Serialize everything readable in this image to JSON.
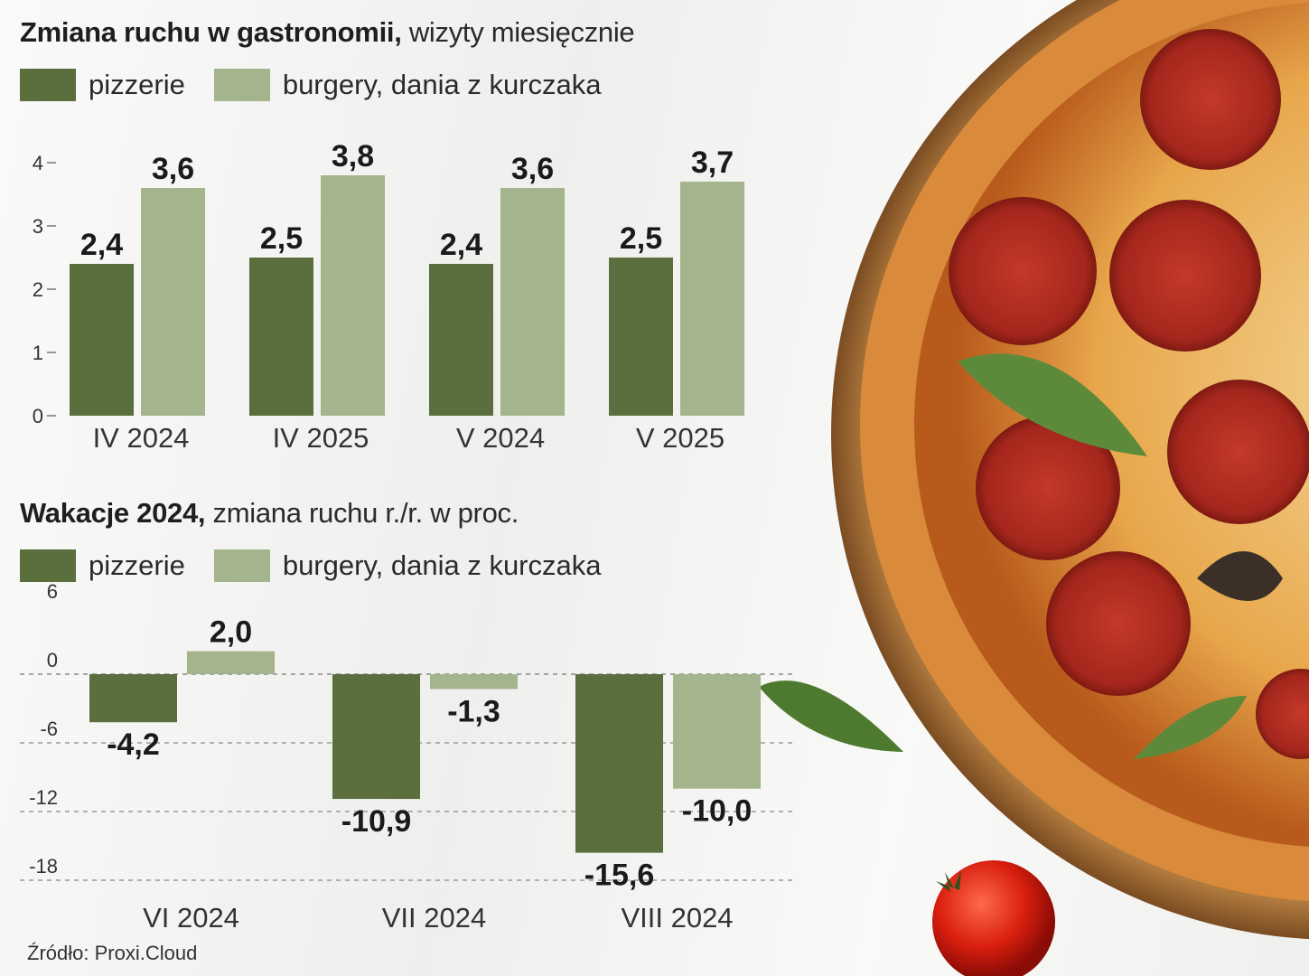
{
  "header": {
    "title_bold": "Zmiana ruchu w gastronomii,",
    "title_light": " wizyty miesięcznie"
  },
  "legend1": [
    {
      "label": "pizzerie",
      "color": "#5a6e3e"
    },
    {
      "label": "burgery, dania z kurczaka",
      "color": "#a4b48c"
    }
  ],
  "header2": {
    "title_bold": "Wakacje 2024,",
    "title_light": " zmiana ruchu r./r. w proc."
  },
  "legend2": [
    {
      "label": "pizzerie",
      "color": "#5a6e3e"
    },
    {
      "label": "burgery, dania z kurczaka",
      "color": "#a4b48c"
    }
  ],
  "source": "Źródło: Proxi.Cloud",
  "chart_data": [
    {
      "type": "bar",
      "title": "Zmiana ruchu w gastronomii, wizyty miesięcznie",
      "categories": [
        "IV 2024",
        "IV 2025",
        "V 2024",
        "V 2025"
      ],
      "series": [
        {
          "name": "pizzerie",
          "values": [
            2.4,
            2.5,
            2.4,
            2.5
          ],
          "labels": [
            "2,4",
            "2,5",
            "2,4",
            "2,5"
          ],
          "color": "#5a6e3e"
        },
        {
          "name": "burgery, dania z kurczaka",
          "values": [
            3.6,
            3.8,
            3.6,
            3.7
          ],
          "labels": [
            "3,6",
            "3,8",
            "3,6",
            "3,7"
          ],
          "color": "#a4b48c"
        }
      ],
      "yticks": [
        "0",
        "1",
        "2",
        "3",
        "4"
      ],
      "ytick_values": [
        0,
        1,
        2,
        3,
        4
      ],
      "ylim": [
        0,
        4
      ],
      "grid": false,
      "legend": "top"
    },
    {
      "type": "bar",
      "title": "Wakacje 2024, zmiana ruchu r./r. w proc.",
      "categories": [
        "VI 2024",
        "VII 2024",
        "VIII 2024"
      ],
      "series": [
        {
          "name": "pizzerie",
          "values": [
            -4.2,
            -10.9,
            -15.6
          ],
          "labels": [
            "-4,2",
            "-10,9",
            "-15,6"
          ],
          "color": "#5a6e3e"
        },
        {
          "name": "burgery, dania z kurczaka",
          "values": [
            2.0,
            -1.3,
            -10.0
          ],
          "labels": [
            "2,0",
            "-1,3",
            "-10,0"
          ],
          "color": "#a4b48c"
        }
      ],
      "yticks": [
        "6",
        "0",
        "-6",
        "-12",
        "-18"
      ],
      "ytick_values": [
        6,
        0,
        -6,
        -12,
        -18
      ],
      "ylim": [
        -18,
        6
      ],
      "grid": "dashed",
      "legend": "top"
    }
  ]
}
